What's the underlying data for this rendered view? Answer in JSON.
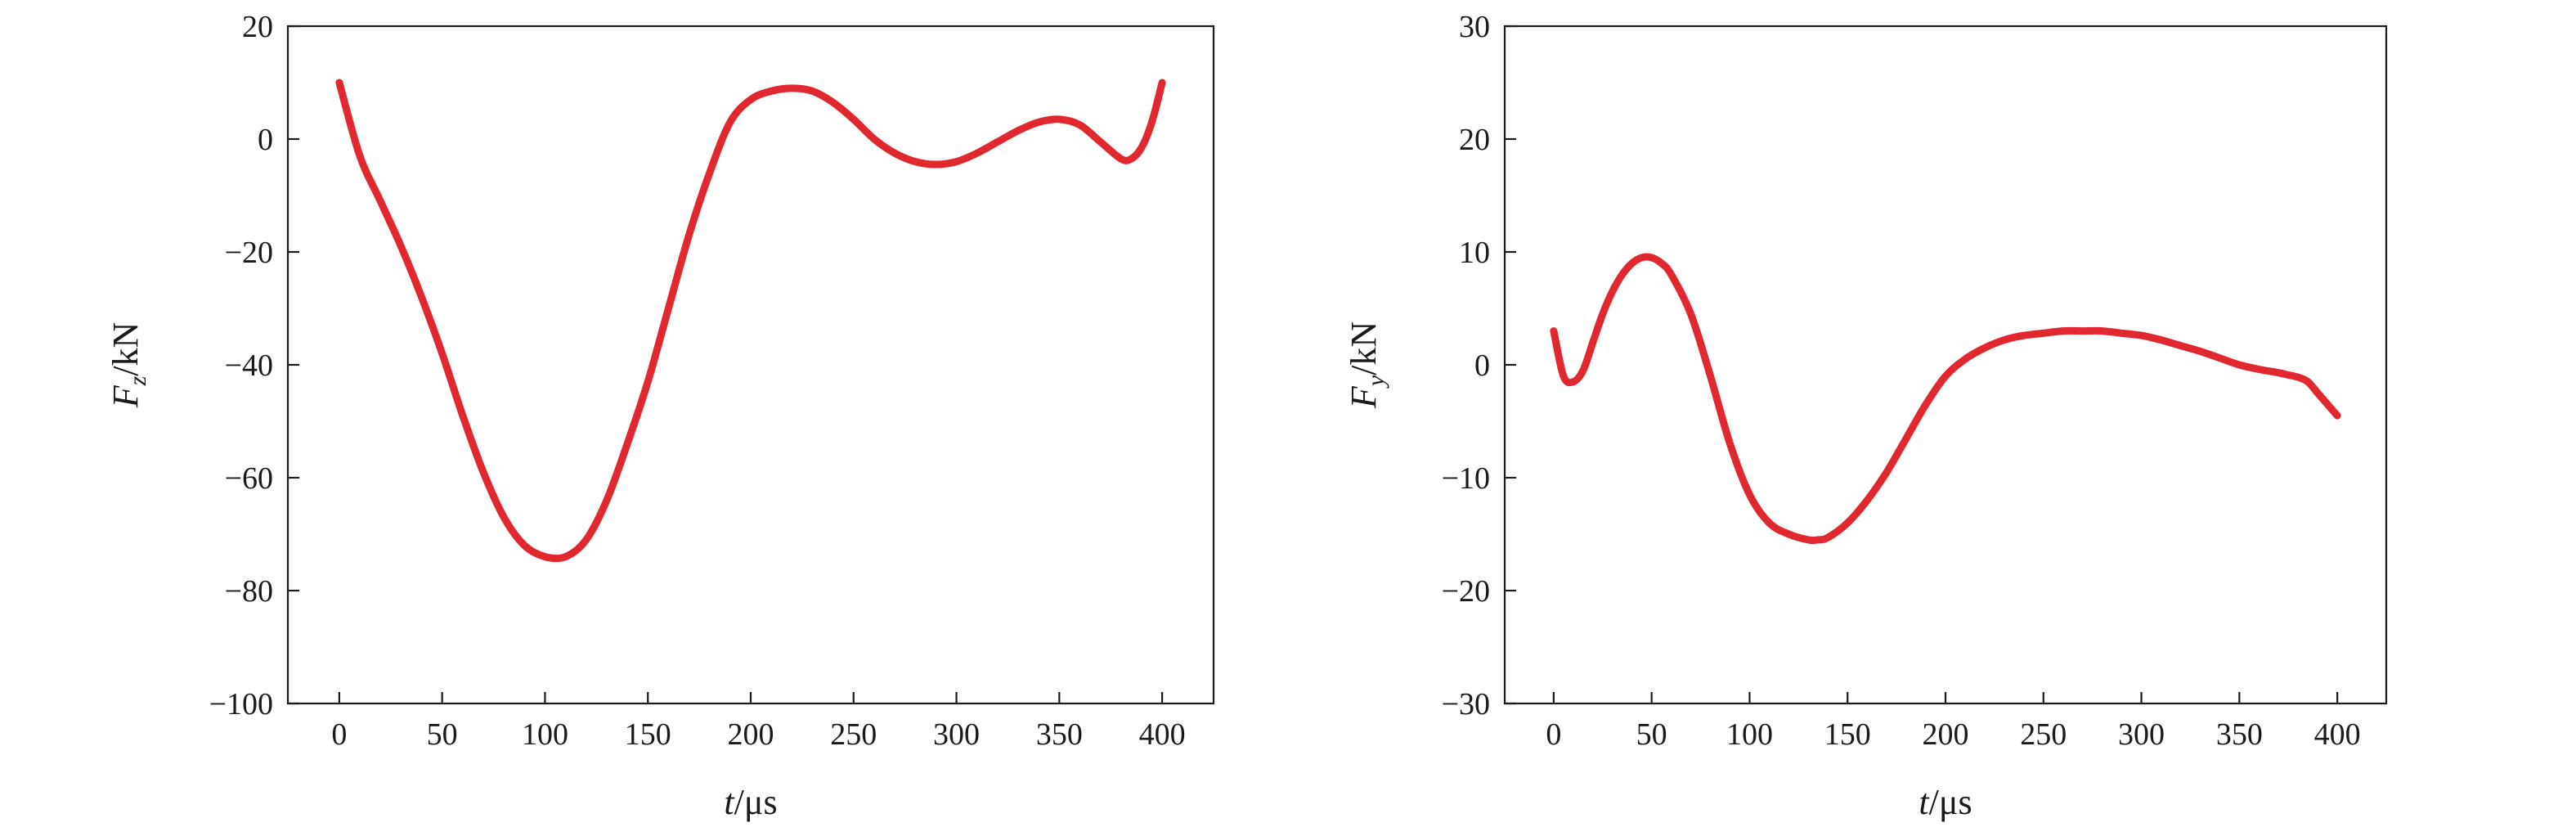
{
  "chart_data": [
    {
      "type": "line",
      "xlabel": "t/μs",
      "xlabel_parts": {
        "var": "t",
        "unit": "/μs"
      },
      "ylabel": "Fz/kN",
      "ylabel_parts": {
        "var": "F",
        "sub": "z",
        "unit": "/kN"
      },
      "xlim": [
        -25,
        425
      ],
      "ylim": [
        -100,
        20
      ],
      "x_ticks": [
        0,
        50,
        100,
        150,
        200,
        250,
        300,
        350,
        400
      ],
      "x_tick_labels": [
        "0",
        "50",
        "100",
        "150",
        "200",
        "250",
        "300",
        "350",
        "400"
      ],
      "y_ticks": [
        20,
        0,
        -20,
        -40,
        -60,
        -80,
        -100
      ],
      "y_tick_labels": [
        "20",
        "0",
        "−20",
        "−40",
        "−60",
        "−80",
        "−100"
      ],
      "grid": false,
      "color": "#e0282e",
      "series": [
        {
          "x": [
            0,
            10,
            20,
            30,
            40,
            50,
            60,
            70,
            80,
            90,
            100,
            110,
            120,
            130,
            140,
            150,
            160,
            170,
            180,
            190,
            200,
            210,
            220,
            230,
            240,
            250,
            260,
            270,
            280,
            290,
            300,
            310,
            320,
            330,
            340,
            350,
            360,
            370,
            380,
            385,
            390,
            395,
            400
          ],
          "y": [
            10,
            -3,
            -11,
            -19,
            -28,
            -38,
            -49,
            -59,
            -67,
            -72,
            -74,
            -74,
            -71,
            -64,
            -54,
            -43,
            -30,
            -17,
            -6,
            3,
            7,
            8.5,
            9,
            8.5,
            6.5,
            3.5,
            0,
            -2.5,
            -4,
            -4.5,
            -4,
            -2.5,
            -0.5,
            1.5,
            3,
            3.5,
            2.5,
            -0.5,
            -3.5,
            -3.5,
            -1.5,
            3,
            10
          ]
        }
      ]
    },
    {
      "type": "line",
      "xlabel": "t/μs",
      "xlabel_parts": {
        "var": "t",
        "unit": "/μs"
      },
      "ylabel": "Fy/kN",
      "ylabel_parts": {
        "var": "F",
        "sub": "y",
        "unit": "/kN"
      },
      "xlim": [
        -25,
        425
      ],
      "ylim": [
        -30,
        30
      ],
      "x_ticks": [
        0,
        50,
        100,
        150,
        200,
        250,
        300,
        350,
        400
      ],
      "x_tick_labels": [
        "0",
        "50",
        "100",
        "150",
        "200",
        "250",
        "300",
        "350",
        "400"
      ],
      "y_ticks": [
        30,
        20,
        10,
        0,
        -10,
        -20,
        -30
      ],
      "y_tick_labels": [
        "30",
        "20",
        "10",
        "0",
        "−10",
        "−20",
        "−30"
      ],
      "grid": false,
      "color": "#e0282e",
      "series": [
        {
          "x": [
            0,
            5,
            10,
            15,
            20,
            25,
            30,
            35,
            40,
            45,
            50,
            55,
            60,
            70,
            80,
            90,
            100,
            110,
            120,
            130,
            135,
            140,
            150,
            160,
            170,
            180,
            190,
            200,
            210,
            220,
            230,
            240,
            250,
            260,
            270,
            280,
            290,
            300,
            310,
            320,
            330,
            340,
            350,
            360,
            370,
            375,
            380,
            385,
            390,
            395,
            400
          ],
          "y": [
            3,
            -1,
            -1.5,
            -0.5,
            2,
            4.5,
            6.5,
            8,
            9,
            9.5,
            9.5,
            9,
            8,
            4.5,
            -1,
            -7,
            -11.5,
            -14,
            -15,
            -15.5,
            -15.5,
            -15.3,
            -14,
            -12,
            -9.5,
            -6.5,
            -3.5,
            -1,
            0.5,
            1.5,
            2.2,
            2.6,
            2.8,
            3,
            3,
            3,
            2.8,
            2.6,
            2.2,
            1.7,
            1.2,
            0.6,
            0,
            -0.4,
            -0.7,
            -0.9,
            -1.1,
            -1.5,
            -2.5,
            -3.5,
            -4.5
          ]
        }
      ]
    }
  ]
}
